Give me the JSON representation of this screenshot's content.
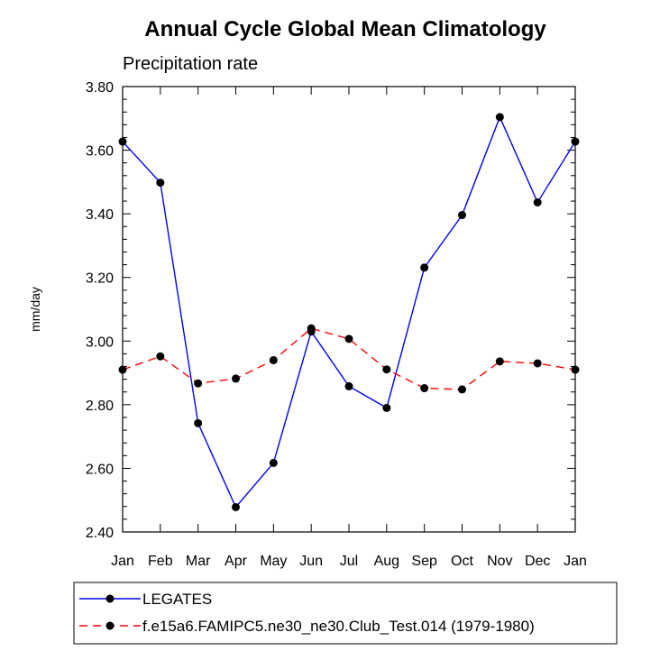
{
  "chart_data": {
    "type": "line",
    "title": "Annual Cycle Global Mean Climatology",
    "subtitle": "Precipitation rate",
    "ylabel": "mm/day",
    "xlabel": "",
    "categories": [
      "Jan",
      "Feb",
      "Mar",
      "Apr",
      "May",
      "Jun",
      "Jul",
      "Aug",
      "Sep",
      "Oct",
      "Nov",
      "Dec",
      "Jan"
    ],
    "ylim": [
      2.4,
      3.8
    ],
    "yticks": [
      "2.40",
      "2.60",
      "2.80",
      "3.00",
      "3.20",
      "3.40",
      "3.60",
      "3.80"
    ],
    "series": [
      {
        "name": "LEGATES",
        "color": "#0000ff",
        "line_style": "solid",
        "marker": "filled-circle",
        "values": [
          3.627,
          3.498,
          2.742,
          2.478,
          2.617,
          3.03,
          2.858,
          2.79,
          3.231,
          3.396,
          3.704,
          3.436,
          3.627
        ]
      },
      {
        "name": "f.e15a6.FAMIPC5.ne30_ne30.Club_Test.014 (1979-1980)",
        "color": "#ff0000",
        "line_style": "dashed",
        "marker": "filled-circle",
        "values": [
          2.91,
          2.952,
          2.867,
          2.882,
          2.94,
          3.04,
          3.007,
          2.911,
          2.852,
          2.848,
          2.936,
          2.93,
          2.91
        ]
      }
    ],
    "legend_position": "bottom",
    "grid": false
  }
}
